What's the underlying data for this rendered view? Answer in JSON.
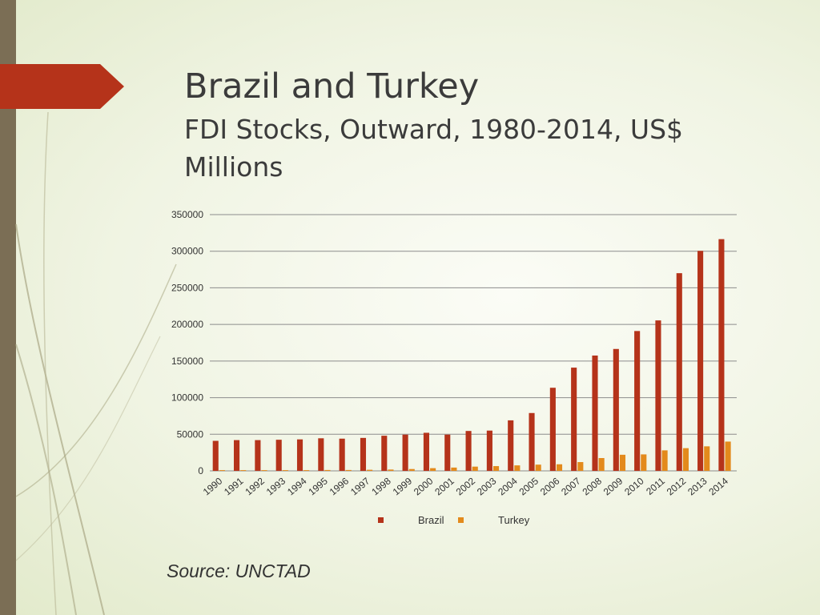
{
  "slide": {
    "title": "Brazil and Turkey",
    "subtitle": "FDI Stocks, Outward, 1980-2014, US$ Millions",
    "source": "Source: UNCTAD",
    "accent_color": "#b5331a",
    "sidebar_color": "#7b6e55"
  },
  "chart_data": {
    "type": "bar",
    "categories": [
      "1990",
      "1991",
      "1992",
      "1993",
      "1994",
      "1995",
      "1996",
      "1997",
      "1998",
      "1999",
      "2000",
      "2001",
      "2002",
      "2003",
      "2004",
      "2005",
      "2006",
      "2007",
      "2008",
      "2009",
      "2010",
      "2011",
      "2012",
      "2013",
      "2014"
    ],
    "series": [
      {
        "name": "Brazil",
        "color": "#b5331a",
        "values": [
          41000,
          42000,
          42000,
          42500,
          43000,
          44500,
          44000,
          45000,
          48000,
          49500,
          52000,
          49500,
          54500,
          55000,
          69000,
          79000,
          113500,
          141000,
          157500,
          166500,
          191000,
          205500,
          270000,
          300500,
          316500
        ]
      },
      {
        "name": "Turkey",
        "color": "#e38a1c",
        "values": [
          1000,
          1000,
          1000,
          1000,
          1000,
          1200,
          1200,
          1500,
          1800,
          2500,
          3700,
          4500,
          5800,
          6500,
          7500,
          8500,
          9000,
          12000,
          17500,
          22000,
          22500,
          28000,
          31000,
          33500,
          40000
        ]
      }
    ],
    "y_ticks": [
      "0",
      "50000",
      "100000",
      "150000",
      "200000",
      "250000",
      "300000",
      "350000"
    ],
    "ylim": [
      0,
      350000
    ],
    "grid": true,
    "legend_position": "bottom"
  }
}
